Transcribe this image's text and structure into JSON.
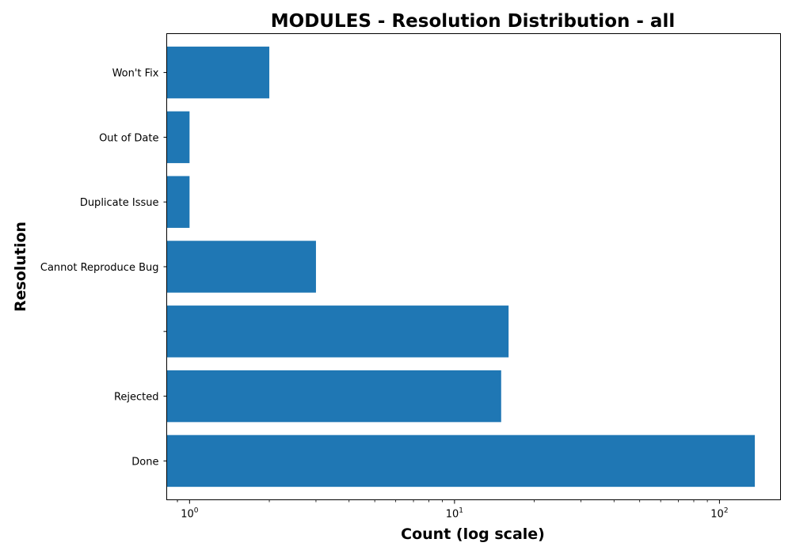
{
  "chart_data": {
    "type": "bar",
    "orientation": "horizontal",
    "title": "MODULES - Resolution Distribution - all",
    "xlabel": "Count (log scale)",
    "ylabel": "Resolution",
    "x_scale": "log",
    "xlim": [
      0.82,
      170
    ],
    "x_ticks": [
      {
        "value": 1,
        "base": "10",
        "exp": "0"
      },
      {
        "value": 10,
        "base": "10",
        "exp": "1"
      },
      {
        "value": 100,
        "base": "10",
        "exp": "2"
      }
    ],
    "categories": [
      "Done",
      "Rejected",
      "",
      "Cannot Reproduce Bug",
      "Duplicate Issue",
      "Out of Date",
      "Won't Fix"
    ],
    "values": [
      136,
      15,
      16,
      3,
      1,
      1,
      2
    ],
    "bar_color": "#1f77b4",
    "grid": false,
    "legend": "none"
  }
}
